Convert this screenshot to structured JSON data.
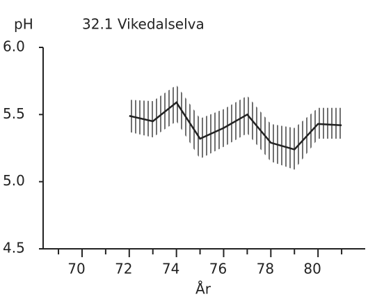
{
  "chart_data": {
    "type": "line",
    "title": "32.1 Vikedalselva",
    "y_label": "pH",
    "x_label": "År",
    "x": [
      72,
      73,
      74,
      75,
      76,
      77,
      78,
      79,
      80,
      81
    ],
    "series": [
      {
        "color": "#222222",
        "values": [
          5.49,
          5.45,
          5.59,
          5.32,
          5.4,
          5.5,
          5.29,
          5.24,
          5.43,
          5.42
        ],
        "low": [
          5.37,
          5.33,
          5.45,
          5.17,
          5.26,
          5.36,
          5.15,
          5.09,
          5.32,
          5.32
        ],
        "high": [
          5.61,
          5.6,
          5.72,
          5.47,
          5.54,
          5.64,
          5.43,
          5.4,
          5.55,
          5.55
        ]
      }
    ],
    "xlim": [
      68.35,
      82
    ],
    "xticks": [
      70,
      72,
      74,
      76,
      78,
      80
    ],
    "xminor_ticks": [
      69,
      71,
      73,
      75,
      77,
      79,
      81
    ],
    "ylim": [
      4.5,
      6.0
    ],
    "yticks": [
      {
        "value": 4.5,
        "label": "4.5"
      },
      {
        "value": 5,
        "label": "5.0"
      },
      {
        "value": 5.5,
        "label": "5.5"
      },
      {
        "value": 6,
        "label": "6.0"
      }
    ]
  }
}
